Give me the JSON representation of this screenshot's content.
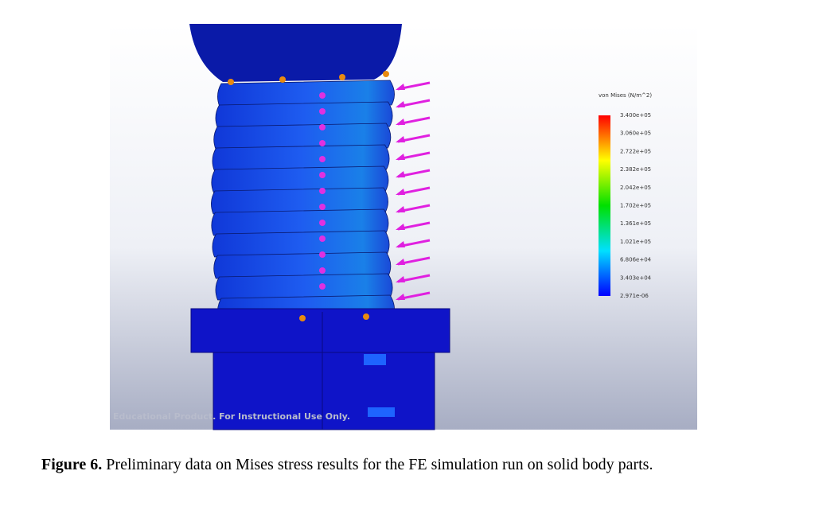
{
  "figure": {
    "legend": {
      "title": "von Mises (N/m^2)",
      "labels": [
        "3.400e+05",
        "3.060e+05",
        "2.722e+05",
        "2.382e+05",
        "2.042e+05",
        "1.702e+05",
        "1.361e+05",
        "1.021e+05",
        "6.806e+04",
        "3.403e+04",
        "2.971e-06"
      ]
    },
    "watermark": "Educational Product. For Instructional Use Only.",
    "caption": {
      "label": "Figure 6.",
      "text": "Preliminary data on Mises stress results for the FE simulation run on solid body parts."
    }
  }
}
